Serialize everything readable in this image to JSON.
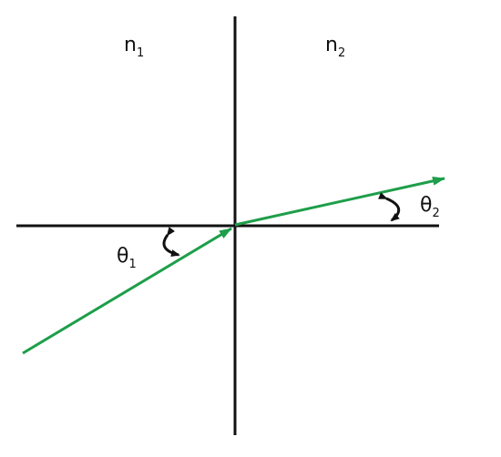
{
  "labels": [
    {
      "symbol": "n",
      "subscript": "1"
    },
    {
      "symbol": "n",
      "subscript": "2"
    },
    {
      "symbol": "θ",
      "subscript": "1"
    },
    {
      "symbol": "θ",
      "subscript": "2"
    }
  ]
}
